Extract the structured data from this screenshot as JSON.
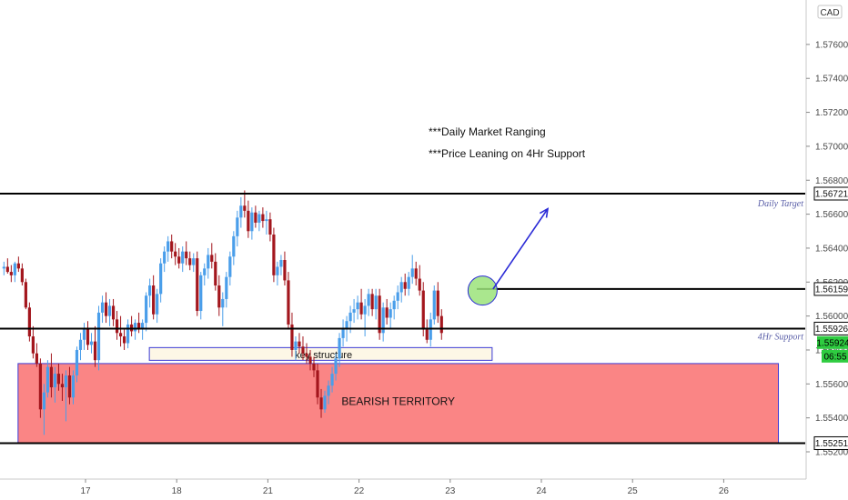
{
  "chart_data": {
    "type": "candlestick",
    "currency_badge": "CAD",
    "y_range": [
      1.55155,
      1.57775
    ],
    "y_ticks": [
      "1.57600",
      "1.57400",
      "1.57200",
      "1.57000",
      "1.56800",
      "1.56600",
      "1.56400",
      "1.56200",
      "1.56000",
      "1.55800",
      "1.55600",
      "1.55400",
      "1.55200"
    ],
    "x_ticks": [
      {
        "label": "17",
        "x": 0
      },
      {
        "label": "18",
        "x": 1
      },
      {
        "label": "21",
        "x": 2
      },
      {
        "label": "22",
        "x": 3
      },
      {
        "label": "23",
        "x": 4
      },
      {
        "label": "24",
        "x": 5
      },
      {
        "label": "25",
        "x": 6
      },
      {
        "label": "26",
        "x": 7
      }
    ],
    "annotations": {
      "line1": "***Daily Market Ranging",
      "line2": "***Price Leaning on 4Hr Support"
    },
    "levels": [
      {
        "price": 1.56721,
        "label": "1.56721",
        "tag_bg": "#ffffff",
        "tag_fg": "#111111",
        "caption": "Daily Target"
      },
      {
        "price": 1.56159,
        "label": "1.56159",
        "tag_bg": "#ffffff",
        "tag_fg": "#111111",
        "caption": ""
      },
      {
        "price": 1.55926,
        "label": "1.55926",
        "tag_bg": "#ffffff",
        "tag_fg": "#111111",
        "caption": "4Hr Support"
      },
      {
        "price": 1.55251,
        "label": "1.55251",
        "tag_bg": "#ffffff",
        "tag_fg": "#111111",
        "caption": ""
      }
    ],
    "current_price": {
      "price": 1.55924,
      "label": "1.55924",
      "countdown": "06:55",
      "color": "#2ecc40"
    },
    "zones": [
      {
        "name": "BEARISH TERRITORY",
        "top": 1.5572,
        "bottom": 1.55251,
        "x_from": -0.74,
        "x_to": 7.6,
        "fill": "#fa8585",
        "stroke": "#3b3bd6"
      },
      {
        "name": "key structure",
        "top": 1.55814,
        "bottom": 1.55739,
        "x_from": 0.7,
        "x_to": 4.46,
        "fill": "#fdf7e6",
        "stroke": "#3b3bd6"
      }
    ],
    "target_arrow": {
      "from": [
        4.5,
        1.56159
      ],
      "to": [
        5.05,
        1.56632
      ],
      "color": "#2a2ad6"
    },
    "circle": {
      "x": 4.35,
      "y": 1.5615,
      "color": "#9be37a"
    },
    "colors": {
      "up": "#4a9eea",
      "down": "#a3161d"
    },
    "candles": [
      [
        -0.895,
        1.5628,
        1.5632,
        1.5624,
        1.5629
      ],
      [
        -0.855,
        1.5629,
        1.5634,
        1.5625,
        1.5626
      ],
      [
        -0.815,
        1.5626,
        1.563,
        1.562,
        1.5624
      ],
      [
        -0.775,
        1.5624,
        1.5632,
        1.562,
        1.5631
      ],
      [
        -0.735,
        1.5631,
        1.5635,
        1.5626,
        1.5628
      ],
      [
        -0.695,
        1.5628,
        1.5631,
        1.5618,
        1.562
      ],
      [
        -0.655,
        1.562,
        1.5622,
        1.5604,
        1.5605
      ],
      [
        -0.615,
        1.5605,
        1.5608,
        1.5585,
        1.5588
      ],
      [
        -0.575,
        1.5588,
        1.5594,
        1.5575,
        1.5578
      ],
      [
        -0.535,
        1.5578,
        1.5584,
        1.557,
        1.5572
      ],
      [
        -0.495,
        1.5572,
        1.5575,
        1.554,
        1.5545
      ],
      [
        -0.455,
        1.5545,
        1.556,
        1.553,
        1.5555
      ],
      [
        -0.415,
        1.5555,
        1.5574,
        1.5552,
        1.557
      ],
      [
        -0.375,
        1.557,
        1.5578,
        1.5552,
        1.5558
      ],
      [
        -0.335,
        1.5558,
        1.557,
        1.5549,
        1.5566
      ],
      [
        -0.295,
        1.5566,
        1.5572,
        1.5556,
        1.556
      ],
      [
        -0.255,
        1.556,
        1.5566,
        1.555,
        1.5558
      ],
      [
        -0.215,
        1.5558,
        1.5568,
        1.5538,
        1.5565
      ],
      [
        -0.175,
        1.5565,
        1.557,
        1.5548,
        1.5552
      ],
      [
        -0.135,
        1.5552,
        1.5568,
        1.5548,
        1.5565
      ],
      [
        -0.095,
        1.5565,
        1.5582,
        1.5561,
        1.558
      ],
      [
        -0.055,
        1.558,
        1.559,
        1.5574,
        1.5586
      ],
      [
        -0.015,
        1.5586,
        1.5596,
        1.558,
        1.5593
      ],
      [
        0.025,
        1.5593,
        1.5597,
        1.558,
        1.5583
      ],
      [
        0.065,
        1.5583,
        1.559,
        1.5578,
        1.5585
      ],
      [
        0.105,
        1.5585,
        1.5594,
        1.557,
        1.5574
      ],
      [
        0.145,
        1.5574,
        1.5606,
        1.5568,
        1.5602
      ],
      [
        0.185,
        1.5602,
        1.5612,
        1.5596,
        1.5608
      ],
      [
        0.225,
        1.5608,
        1.5614,
        1.5596,
        1.56
      ],
      [
        0.265,
        1.56,
        1.561,
        1.5594,
        1.5606
      ],
      [
        0.305,
        1.5606,
        1.561,
        1.5594,
        1.5598
      ],
      [
        0.345,
        1.5598,
        1.5603,
        1.5586,
        1.559
      ],
      [
        0.385,
        1.559,
        1.56,
        1.5582,
        1.5588
      ],
      [
        0.425,
        1.5588,
        1.5592,
        1.558,
        1.5584
      ],
      [
        0.465,
        1.5584,
        1.5598,
        1.5581,
        1.5595
      ],
      [
        0.505,
        1.5595,
        1.56,
        1.5588,
        1.5591
      ],
      [
        0.545,
        1.5591,
        1.5598,
        1.5586,
        1.5596
      ],
      [
        0.585,
        1.5596,
        1.5602,
        1.559,
        1.5593
      ],
      [
        0.625,
        1.5593,
        1.5598,
        1.5586,
        1.5596
      ],
      [
        0.665,
        1.5596,
        1.5614,
        1.5591,
        1.5612
      ],
      [
        0.705,
        1.5612,
        1.5622,
        1.5605,
        1.5618
      ],
      [
        0.745,
        1.5618,
        1.5624,
        1.5598,
        1.5601
      ],
      [
        0.785,
        1.5601,
        1.5616,
        1.5596,
        1.5613
      ],
      [
        0.825,
        1.5613,
        1.5634,
        1.5608,
        1.5631
      ],
      [
        0.865,
        1.5631,
        1.5641,
        1.5626,
        1.5638
      ],
      [
        0.905,
        1.5638,
        1.5647,
        1.5632,
        1.5644
      ],
      [
        0.945,
        1.5644,
        1.5648,
        1.5634,
        1.5638
      ],
      [
        0.985,
        1.5638,
        1.5643,
        1.563,
        1.5635
      ],
      [
        1.025,
        1.5635,
        1.564,
        1.5628,
        1.5631
      ],
      [
        1.065,
        1.5631,
        1.5641,
        1.5626,
        1.5638
      ],
      [
        1.105,
        1.5638,
        1.5644,
        1.563,
        1.5634
      ],
      [
        1.145,
        1.5634,
        1.5638,
        1.5627,
        1.563
      ],
      [
        1.185,
        1.563,
        1.5637,
        1.5626,
        1.5634
      ],
      [
        1.225,
        1.5634,
        1.5638,
        1.56,
        1.5603
      ],
      [
        1.265,
        1.5603,
        1.5626,
        1.5598,
        1.5624
      ],
      [
        1.305,
        1.5624,
        1.5631,
        1.5618,
        1.5628
      ],
      [
        1.345,
        1.5628,
        1.564,
        1.5622,
        1.5636
      ],
      [
        1.385,
        1.5636,
        1.5643,
        1.5628,
        1.5632
      ],
      [
        1.425,
        1.5632,
        1.5637,
        1.5615,
        1.5618
      ],
      [
        1.465,
        1.5618,
        1.5624,
        1.56,
        1.5605
      ],
      [
        1.505,
        1.5605,
        1.5614,
        1.5594,
        1.561
      ],
      [
        1.545,
        1.561,
        1.5626,
        1.5605,
        1.5623
      ],
      [
        1.585,
        1.5623,
        1.5638,
        1.5618,
        1.5635
      ],
      [
        1.625,
        1.5635,
        1.565,
        1.563,
        1.5647
      ],
      [
        1.665,
        1.5647,
        1.5662,
        1.5641,
        1.5658
      ],
      [
        1.705,
        1.5658,
        1.567,
        1.5652,
        1.5665
      ],
      [
        1.745,
        1.5665,
        1.5674,
        1.5658,
        1.5662
      ],
      [
        1.785,
        1.5662,
        1.5668,
        1.5646,
        1.565
      ],
      [
        1.825,
        1.565,
        1.5664,
        1.5645,
        1.5661
      ],
      [
        1.865,
        1.5661,
        1.5665,
        1.5652,
        1.5655
      ],
      [
        1.905,
        1.5655,
        1.5662,
        1.565,
        1.566
      ],
      [
        1.945,
        1.566,
        1.5664,
        1.5652,
        1.5656
      ],
      [
        1.985,
        1.5656,
        1.5662,
        1.5648,
        1.5657
      ],
      [
        2.025,
        1.5657,
        1.5661,
        1.5644,
        1.5648
      ],
      [
        2.065,
        1.5648,
        1.5652,
        1.562,
        1.5624
      ],
      [
        2.105,
        1.5624,
        1.5632,
        1.5618,
        1.5629
      ],
      [
        2.145,
        1.5629,
        1.5636,
        1.5624,
        1.5633
      ],
      [
        2.185,
        1.5633,
        1.5638,
        1.5618,
        1.5621
      ],
      [
        2.225,
        1.5621,
        1.5626,
        1.5592,
        1.5595
      ],
      [
        2.265,
        1.5595,
        1.5602,
        1.5576,
        1.558
      ],
      [
        2.305,
        1.558,
        1.5588,
        1.5574,
        1.5585
      ],
      [
        2.345,
        1.5585,
        1.559,
        1.5578,
        1.5582
      ],
      [
        2.385,
        1.5582,
        1.5588,
        1.5574,
        1.5578
      ],
      [
        2.425,
        1.5578,
        1.5584,
        1.5572,
        1.5576
      ],
      [
        2.465,
        1.5576,
        1.558,
        1.5568,
        1.5572
      ],
      [
        2.505,
        1.5572,
        1.5576,
        1.5564,
        1.5568
      ],
      [
        2.545,
        1.5568,
        1.5572,
        1.5548,
        1.5552
      ],
      [
        2.585,
        1.5552,
        1.5557,
        1.554,
        1.5545
      ],
      [
        2.625,
        1.5545,
        1.5556,
        1.5543,
        1.5553
      ],
      [
        2.665,
        1.5553,
        1.5562,
        1.5548,
        1.5559
      ],
      [
        2.705,
        1.5559,
        1.557,
        1.5555,
        1.5566
      ],
      [
        2.745,
        1.5566,
        1.5578,
        1.5562,
        1.5575
      ],
      [
        2.785,
        1.5575,
        1.559,
        1.557,
        1.5587
      ],
      [
        2.825,
        1.5587,
        1.5598,
        1.5582,
        1.5593
      ],
      [
        2.865,
        1.5593,
        1.56,
        1.5585,
        1.5597
      ],
      [
        2.905,
        1.5597,
        1.5606,
        1.559,
        1.5602
      ],
      [
        2.945,
        1.5602,
        1.561,
        1.5596,
        1.5604
      ],
      [
        2.985,
        1.5604,
        1.5612,
        1.5598,
        1.5608
      ],
      [
        3.025,
        1.5608,
        1.5616,
        1.5598,
        1.5601
      ],
      [
        3.065,
        1.5601,
        1.561,
        1.5588,
        1.5606
      ],
      [
        3.105,
        1.5606,
        1.5616,
        1.56,
        1.5613
      ],
      [
        3.145,
        1.5613,
        1.5616,
        1.56,
        1.5604
      ],
      [
        3.185,
        1.5604,
        1.5616,
        1.5598,
        1.5612
      ],
      [
        3.225,
        1.5612,
        1.5616,
        1.5586,
        1.559
      ],
      [
        3.265,
        1.559,
        1.5608,
        1.5585,
        1.5605
      ],
      [
        3.305,
        1.5605,
        1.561,
        1.5595,
        1.5599
      ],
      [
        3.345,
        1.5599,
        1.5608,
        1.5593,
        1.5604
      ],
      [
        3.385,
        1.5604,
        1.5612,
        1.5598,
        1.5609
      ],
      [
        3.425,
        1.5609,
        1.5618,
        1.5604,
        1.5614
      ],
      [
        3.465,
        1.5614,
        1.5623,
        1.5608,
        1.562
      ],
      [
        3.505,
        1.562,
        1.5625,
        1.5612,
        1.5616
      ],
      [
        3.545,
        1.5616,
        1.5626,
        1.5612,
        1.5623
      ],
      [
        3.585,
        1.5623,
        1.5636,
        1.5619,
        1.5628
      ],
      [
        3.625,
        1.5628,
        1.5632,
        1.5618,
        1.5622
      ],
      [
        3.665,
        1.5622,
        1.563,
        1.5612,
        1.5615
      ],
      [
        3.705,
        1.5615,
        1.562,
        1.5588,
        1.5592
      ],
      [
        3.745,
        1.5592,
        1.5598,
        1.5584,
        1.5586
      ],
      [
        3.785,
        1.5586,
        1.5602,
        1.5582,
        1.5598
      ],
      [
        3.825,
        1.5598,
        1.5618,
        1.5595,
        1.5615
      ],
      [
        3.865,
        1.5615,
        1.562,
        1.5596,
        1.56
      ],
      [
        3.905,
        1.56,
        1.5604,
        1.5586,
        1.559
      ]
    ]
  }
}
